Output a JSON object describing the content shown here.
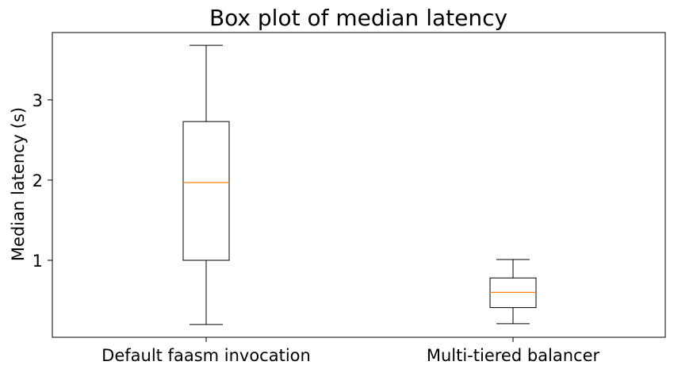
{
  "chart_data": {
    "type": "box",
    "title": "Box plot of median latency",
    "xlabel": "",
    "ylabel": "Median latency (s)",
    "ylim": [
      0.04,
      3.84
    ],
    "yticks": [
      1,
      2,
      3
    ],
    "ytick_labels": [
      "1",
      "2",
      "3"
    ],
    "categories": [
      "Default faasm invocation",
      "Multi-tiered balancer"
    ],
    "boxes": [
      {
        "whisker_low": 0.2,
        "q1": 1.0,
        "median": 1.97,
        "q3": 2.73,
        "whisker_high": 3.68
      },
      {
        "whisker_low": 0.21,
        "q1": 0.41,
        "median": 0.6,
        "q3": 0.78,
        "whisker_high": 1.01
      }
    ],
    "colors": {
      "box": "#000000",
      "median": "#ff7f0e",
      "background": "#ffffff"
    },
    "grid": false,
    "legend": "none"
  }
}
